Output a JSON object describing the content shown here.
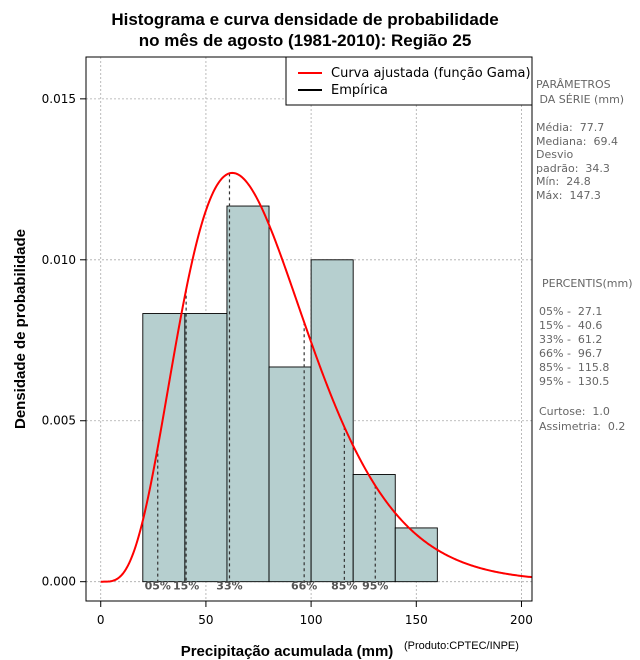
{
  "chart_data": {
    "type": "bar",
    "title_line1": "Histograma e curva densidade de probabilidade",
    "title_line2": "no mês de agosto (1981-2010): Região 25",
    "xlabel": "Precipitação acumulada (mm)",
    "ylabel": "Densidade de probabilidade",
    "credit": "(Produto:CPTEC/INPE)",
    "xlim": [
      -7,
      205
    ],
    "ylim": [
      -0.0006,
      0.0163
    ],
    "x_ticks": [
      0,
      50,
      100,
      150,
      200
    ],
    "x_tick_labels": [
      "0",
      "50",
      "100",
      "150",
      "200"
    ],
    "y_ticks": [
      0.0,
      0.005,
      0.01,
      0.015
    ],
    "y_tick_labels": [
      "0.000",
      "0.005",
      "0.010",
      "0.015"
    ],
    "grid": true,
    "bins": [
      {
        "start": 20,
        "end": 40,
        "value": 0.00833
      },
      {
        "start": 40,
        "end": 60,
        "value": 0.00833
      },
      {
        "start": 60,
        "end": 80,
        "value": 0.01167
      },
      {
        "start": 80,
        "end": 100,
        "value": 0.00667
      },
      {
        "start": 100,
        "end": 120,
        "value": 0.01
      },
      {
        "start": 120,
        "end": 140,
        "value": 0.00333
      },
      {
        "start": 140,
        "end": 160,
        "value": 0.00167
      }
    ],
    "bar_color": "#b6cfcf",
    "curve": {
      "name": "Curva ajustada (função Gama)",
      "shape": 5.13,
      "scale": 15.15,
      "color": "#ff0000"
    },
    "empirical": {
      "name": "Empírica",
      "color": "#000000"
    },
    "legend_position": "top-right",
    "percentiles": [
      {
        "label": "05%",
        "value": 27.1
      },
      {
        "label": "15%",
        "value": 40.6
      },
      {
        "label": "33%",
        "value": 61.2
      },
      {
        "label": "66%",
        "value": 96.7
      },
      {
        "label": "85%",
        "value": 115.8
      },
      {
        "label": "95%",
        "value": 130.5
      }
    ]
  },
  "params": {
    "heading1": "PARÂMETROS",
    "heading2": " DA SÉRIE (mm)",
    "media": "Média:  77.7",
    "mediana": "Mediana:  69.4",
    "desvio1": "Desvio",
    "desvio2": "padrão:  34.3",
    "min": "Mín:  24.8",
    "max": "Máx:  147.3"
  },
  "percentis": {
    "heading": "PERCENTIS(mm)",
    "p05": "05% -  27.1",
    "p15": "15% -  40.6",
    "p33": "33% -  61.2",
    "p66": "66% -  96.7",
    "p85": "85% -  115.8",
    "p95": "95% -  130.5",
    "curtose": "Curtose:  1.0",
    "assimetria": "Assimetria:  0.2"
  }
}
